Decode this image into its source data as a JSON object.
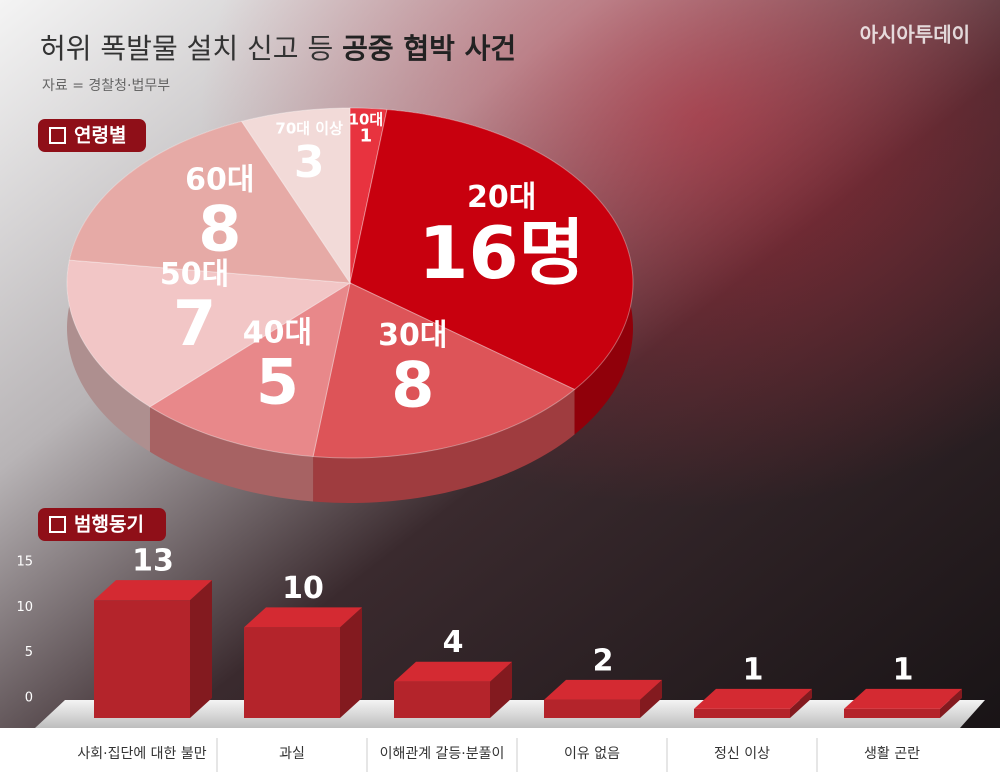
{
  "header": {
    "title_regular": "허위 폭발물 설치 신고 등",
    "title_bold": "공중 협박 사건",
    "source": "자료 = 경찰청·법무부",
    "brand": "아시아투데이"
  },
  "chart_data": [
    {
      "type": "pie",
      "title": "연령별",
      "categories": [
        "10대",
        "20대",
        "30대",
        "40대",
        "50대",
        "60대",
        "70대 이상"
      ],
      "values": [
        1,
        16,
        8,
        5,
        7,
        8,
        3
      ],
      "value_labels": [
        "1",
        "16명",
        "8",
        "5",
        "7",
        "8",
        "3"
      ],
      "colors": [
        "#e8333f",
        "#c8000e",
        "#dd5458",
        "#e8888a",
        "#f2c6c6",
        "#e6aaa6",
        "#f2dad8"
      ]
    },
    {
      "type": "bar",
      "title": "범행동기",
      "categories": [
        "사회·집단에 대한 불만",
        "과실",
        "이해관계 갈등·분풀이",
        "이유 없음",
        "정신 이상",
        "생활 곤란"
      ],
      "values": [
        13,
        10,
        4,
        2,
        1,
        1
      ],
      "ylim": [
        0,
        15
      ],
      "yticks": [
        0,
        5,
        10,
        15
      ],
      "color": "#d42a32"
    }
  ]
}
